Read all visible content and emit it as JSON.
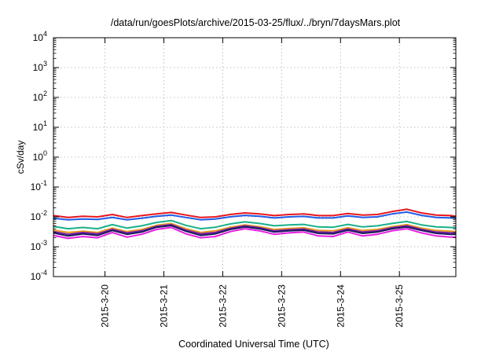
{
  "chart_data": {
    "type": "line",
    "title": "/data/run/goesPlots/archive/2015-03-25/flux/../bryn/7daysMars.plot",
    "xlabel": "Coordinated Universal Time (UTC)",
    "ylabel": "cSv/day",
    "x_start": "2015-03-19T03:00Z",
    "x_end": "2015-03-25T23:00Z",
    "xlim_days": [
      0,
      6.8333
    ],
    "yscale": "log",
    "ylim": [
      0.0001,
      10000
    ],
    "grid": true,
    "y_ticks": [
      {
        "exp": "-4",
        "value": 0.0001
      },
      {
        "exp": "-3",
        "value": 0.001
      },
      {
        "exp": "-2",
        "value": 0.01
      },
      {
        "exp": "-1",
        "value": 0.1
      },
      {
        "exp": "0",
        "value": 1
      },
      {
        "exp": "1",
        "value": 10
      },
      {
        "exp": "2",
        "value": 100
      },
      {
        "exp": "3",
        "value": 1000
      },
      {
        "exp": "4",
        "value": 10000
      }
    ],
    "y_tick_base": "10",
    "x_ticks": [
      {
        "label": "2015-3-20",
        "day": 0.875
      },
      {
        "label": "2015-3-21",
        "day": 1.875
      },
      {
        "label": "2015-3-22",
        "day": 2.875
      },
      {
        "label": "2015-3-23",
        "day": 3.875
      },
      {
        "label": "2015-3-24",
        "day": 4.875
      },
      {
        "label": "2015-3-25",
        "day": 5.875
      }
    ],
    "x_days": [
      0.0,
      0.25,
      0.5,
      0.75,
      1.0,
      1.25,
      1.5,
      1.75,
      2.0,
      2.25,
      2.5,
      2.75,
      3.0,
      3.25,
      3.5,
      3.75,
      4.0,
      4.25,
      4.5,
      4.75,
      5.0,
      5.25,
      5.5,
      5.75,
      6.0,
      6.25,
      6.5,
      6.75,
      6.8333
    ],
    "series": [
      {
        "color": "#e8161e",
        "values": [
          0.011,
          0.0095,
          0.0105,
          0.01,
          0.012,
          0.0095,
          0.011,
          0.0125,
          0.014,
          0.0115,
          0.0095,
          0.01,
          0.012,
          0.0135,
          0.0125,
          0.011,
          0.012,
          0.0125,
          0.011,
          0.011,
          0.013,
          0.0115,
          0.012,
          0.015,
          0.018,
          0.0135,
          0.0115,
          0.011,
          0.0105
        ]
      },
      {
        "color": "#1f5ce6",
        "values": [
          0.009,
          0.008,
          0.0085,
          0.0082,
          0.0095,
          0.008,
          0.009,
          0.0105,
          0.0115,
          0.0095,
          0.008,
          0.0085,
          0.01,
          0.0112,
          0.0105,
          0.0092,
          0.01,
          0.0104,
          0.0092,
          0.0092,
          0.0108,
          0.0096,
          0.01,
          0.0125,
          0.0145,
          0.0112,
          0.0096,
          0.0092,
          0.009
        ]
      },
      {
        "color": "#19b08a",
        "values": [
          0.0048,
          0.004,
          0.0044,
          0.004,
          0.0055,
          0.0042,
          0.005,
          0.0065,
          0.0075,
          0.0052,
          0.004,
          0.0045,
          0.0058,
          0.0068,
          0.006,
          0.005,
          0.0054,
          0.0056,
          0.0046,
          0.0045,
          0.0056,
          0.0046,
          0.005,
          0.006,
          0.007,
          0.0054,
          0.0046,
          0.0044,
          0.0043
        ]
      },
      {
        "color": "#e89a1e",
        "values": [
          0.0036,
          0.003,
          0.0033,
          0.003,
          0.0042,
          0.0032,
          0.0038,
          0.0052,
          0.006,
          0.004,
          0.003,
          0.0034,
          0.0045,
          0.0054,
          0.0047,
          0.0038,
          0.0041,
          0.0043,
          0.0035,
          0.0034,
          0.0043,
          0.0035,
          0.0038,
          0.0047,
          0.0055,
          0.0042,
          0.0035,
          0.0033,
          0.0032
        ]
      },
      {
        "color": "#7a1fa8",
        "values": [
          0.0032,
          0.0026,
          0.003,
          0.0027,
          0.0038,
          0.0029,
          0.0034,
          0.0048,
          0.0055,
          0.0036,
          0.0027,
          0.003,
          0.0041,
          0.005,
          0.0043,
          0.0034,
          0.0037,
          0.0039,
          0.0031,
          0.003,
          0.0039,
          0.0031,
          0.0034,
          0.0043,
          0.005,
          0.0038,
          0.0031,
          0.0029,
          0.0029
        ]
      },
      {
        "color": "#1a1a5e",
        "values": [
          0.0029,
          0.0023,
          0.0027,
          0.0024,
          0.0035,
          0.0026,
          0.0031,
          0.0045,
          0.0051,
          0.0033,
          0.0024,
          0.0027,
          0.0038,
          0.0046,
          0.004,
          0.0031,
          0.0034,
          0.0036,
          0.0028,
          0.0027,
          0.0036,
          0.0028,
          0.0031,
          0.004,
          0.0046,
          0.0035,
          0.0028,
          0.0026,
          0.0026
        ]
      },
      {
        "color": "#e81ee0",
        "values": [
          0.0024,
          0.0019,
          0.0022,
          0.002,
          0.003,
          0.0021,
          0.0026,
          0.0038,
          0.0044,
          0.0027,
          0.002,
          0.0022,
          0.0032,
          0.004,
          0.0034,
          0.0026,
          0.0029,
          0.0031,
          0.0023,
          0.0022,
          0.0031,
          0.0023,
          0.0026,
          0.0034,
          0.004,
          0.0029,
          0.0023,
          0.0021,
          0.0021
        ]
      }
    ]
  }
}
